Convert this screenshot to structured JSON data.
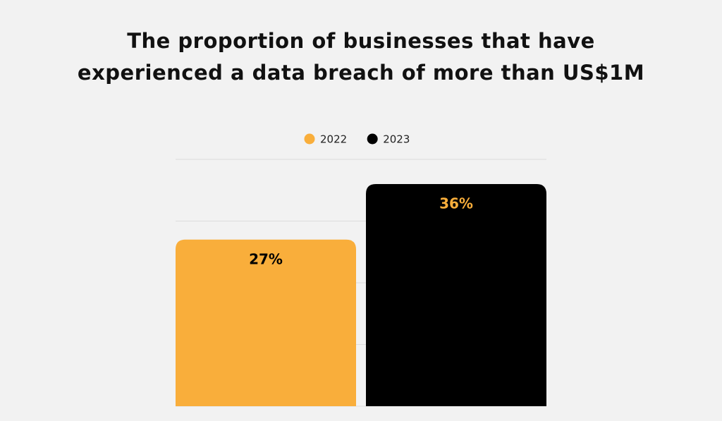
{
  "chart_data": {
    "type": "bar",
    "title": "The proportion of businesses that have experienced a data breach of more than US$1M",
    "series": [
      {
        "name": "2022",
        "color": "#f9ae3b",
        "values": [
          27
        ],
        "value_labels": [
          "27%"
        ]
      },
      {
        "name": "2023",
        "color": "#000000",
        "values": [
          36
        ],
        "value_labels": [
          "36%"
        ]
      }
    ],
    "ylim": [
      0,
      40
    ],
    "yticks": [
      0,
      10,
      20,
      30,
      40
    ],
    "grid": true,
    "legend": "top"
  }
}
